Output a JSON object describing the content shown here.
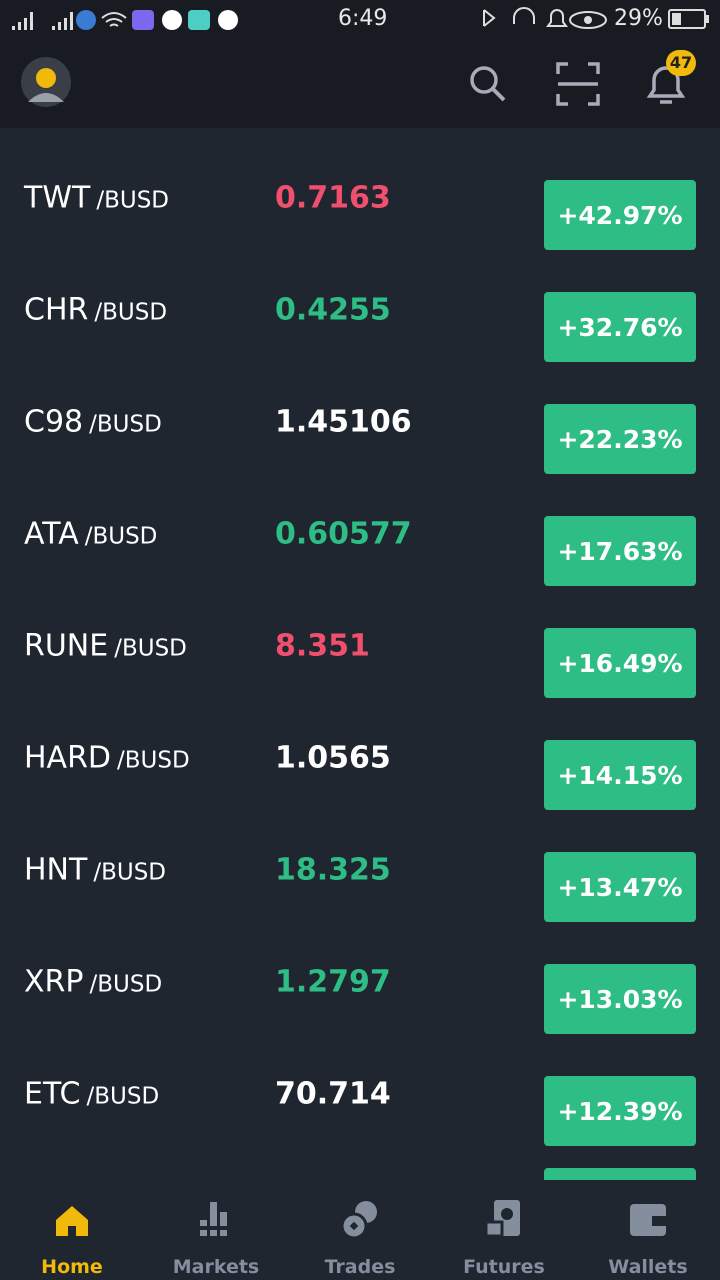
{
  "status_bar": {
    "time": "6:49",
    "battery": "29%"
  },
  "header": {
    "notification_count": "47"
  },
  "rows": [
    {
      "base": "TWT",
      "quote": "/BUSD",
      "price": "0.7163",
      "price_color": "#f0506e",
      "change": "+42.97%"
    },
    {
      "base": "CHR",
      "quote": "/BUSD",
      "price": "0.4255",
      "price_color": "#2ebd85",
      "change": "+32.76%"
    },
    {
      "base": "C98",
      "quote": "/BUSD",
      "price": "1.45106",
      "price_color": "#ffffff",
      "change": "+22.23%"
    },
    {
      "base": "ATA",
      "quote": "/BUSD",
      "price": "0.60577",
      "price_color": "#2ebd85",
      "change": "+17.63%"
    },
    {
      "base": "RUNE",
      "quote": "/BUSD",
      "price": "8.351",
      "price_color": "#f0506e",
      "change": "+16.49%"
    },
    {
      "base": "HARD",
      "quote": "/BUSD",
      "price": "1.0565",
      "price_color": "#ffffff",
      "change": "+14.15%"
    },
    {
      "base": "HNT",
      "quote": "/BUSD",
      "price": "18.325",
      "price_color": "#2ebd85",
      "change": "+13.47%"
    },
    {
      "base": "XRP",
      "quote": "/BUSD",
      "price": "1.2797",
      "price_color": "#2ebd85",
      "change": "+13.03%"
    },
    {
      "base": "ETC",
      "quote": "/BUSD",
      "price": "70.714",
      "price_color": "#ffffff",
      "change": "+12.39%"
    }
  ],
  "nav": [
    {
      "label": "Home",
      "active": true
    },
    {
      "label": "Markets",
      "active": false
    },
    {
      "label": "Trades",
      "active": false
    },
    {
      "label": "Futures",
      "active": false
    },
    {
      "label": "Wallets",
      "active": false
    }
  ]
}
